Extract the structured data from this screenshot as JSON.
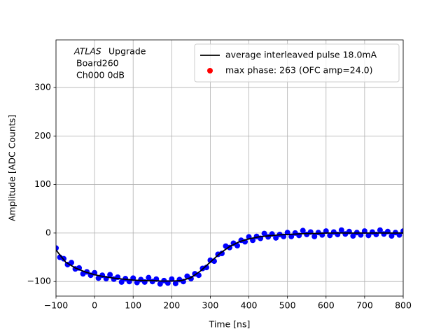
{
  "chart_data": {
    "type": "line",
    "xlabel": "Time [ns]",
    "ylabel": "Amplitude [ADC Counts]",
    "annotation": [
      "ATLAS",
      "Upgrade",
      "Board260",
      "Ch000 0dB"
    ],
    "xlim": [
      -100,
      800
    ],
    "ylim": [
      -130,
      398
    ],
    "xticks": [
      {
        "value": -100,
        "label": "−100"
      },
      0,
      100,
      200,
      300,
      400,
      500,
      600,
      700,
      800
    ],
    "yticks": [
      {
        "value": -100,
        "label": "−100"
      },
      0,
      100,
      200,
      300
    ],
    "grid": true,
    "legend": "upper right",
    "series": [
      {
        "name": "average interleaved pulse 18.0mA",
        "color": "#000000",
        "style": "line",
        "x": [
          -100,
          -75,
          -50,
          -25,
          0,
          25,
          50,
          75,
          100,
          125,
          150,
          175,
          200,
          225,
          250,
          275,
          300,
          325,
          350,
          375,
          400,
          425,
          450,
          475,
          500,
          525,
          550,
          575,
          600,
          625,
          650,
          675,
          700,
          725,
          750,
          775,
          800
        ],
        "values": [
          -35,
          -60,
          -72,
          -80,
          -86,
          -90,
          -93,
          -95,
          -97,
          -98,
          -98,
          -99,
          -99,
          -98,
          -92,
          -78,
          -60,
          -42,
          -28,
          -18,
          -12,
          -8,
          -6,
          -4,
          -3,
          -2,
          -1,
          -1,
          0,
          0,
          0,
          0,
          0,
          0,
          0,
          0,
          0
        ]
      },
      {
        "name": "max phase: 263 (OFC amp=24.0)",
        "color": "#ff0000",
        "style": "markers",
        "x": [],
        "values": []
      },
      {
        "color": "#0000ff",
        "style": "markers",
        "x": [
          -100,
          -90,
          -80,
          -70,
          -60,
          -50,
          -40,
          -30,
          -20,
          -10,
          0,
          10,
          20,
          30,
          40,
          50,
          60,
          70,
          80,
          90,
          100,
          110,
          120,
          130,
          140,
          150,
          160,
          170,
          180,
          190,
          200,
          210,
          220,
          230,
          240,
          250,
          260,
          270,
          280,
          290,
          300,
          310,
          320,
          330,
          340,
          350,
          360,
          370,
          380,
          390,
          400,
          410,
          420,
          430,
          440,
          450,
          460,
          470,
          480,
          490,
          500,
          510,
          520,
          530,
          540,
          550,
          560,
          570,
          580,
          590,
          600,
          610,
          620,
          630,
          640,
          650,
          660,
          670,
          680,
          690,
          700,
          710,
          720,
          730,
          740,
          750,
          760,
          770,
          780,
          790,
          800
        ],
        "values": [
          -31,
          -50,
          -53,
          -65,
          -61,
          -74,
          -72,
          -84,
          -80,
          -87,
          -82,
          -93,
          -87,
          -94,
          -86,
          -95,
          -91,
          -101,
          -94,
          -100,
          -93,
          -102,
          -96,
          -101,
          -92,
          -100,
          -95,
          -105,
          -98,
          -103,
          -95,
          -104,
          -96,
          -100,
          -89,
          -94,
          -84,
          -87,
          -73,
          -71,
          -56,
          -58,
          -44,
          -42,
          -27,
          -30,
          -21,
          -26,
          -15,
          -18,
          -8,
          -15,
          -7,
          -11,
          -1,
          -8,
          -2,
          -10,
          -3,
          -7,
          1,
          -7,
          0,
          -5,
          5,
          -3,
          2,
          -7,
          1,
          -4,
          4,
          -5,
          2,
          -3,
          6,
          -2,
          3,
          -6,
          1,
          -4,
          4,
          -5,
          2,
          -3,
          6,
          -2,
          3,
          -6,
          1,
          -4,
          4
        ]
      }
    ]
  }
}
